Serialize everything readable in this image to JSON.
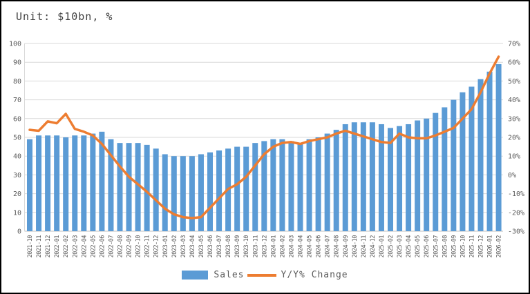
{
  "header": {
    "title": "Unit: $10bn, %"
  },
  "legend": {
    "sales_label": "Sales",
    "yoy_label": "Y/Y% Change"
  },
  "colors": {
    "bar": "#5B9BD5",
    "line": "#ED7D31",
    "gridline": "#D9D9D9",
    "axis_line": "#BFBFBF",
    "axis_text": "#595959",
    "title_text": "#3F3F3F",
    "background": "#FFFFFF",
    "frame": "#000000"
  },
  "chart_data": {
    "type": "bar",
    "subtype": "bar+line-combo",
    "title": "Unit: $10bn, %",
    "grid": true,
    "legend_position": "bottom",
    "categories": [
      "2021-10",
      "2021-11",
      "2021-12",
      "2022-01",
      "2022-02",
      "2022-03",
      "2022-04",
      "2022-05",
      "2022-06",
      "2022-07",
      "2022-08",
      "2022-09",
      "2022-10",
      "2022-11",
      "2022-12",
      "2023-01",
      "2023-02",
      "2023-03",
      "2023-04",
      "2023-05",
      "2023-06",
      "2023-07",
      "2023-08",
      "2023-09",
      "2023-10",
      "2023-11",
      "2023-12",
      "2024-01",
      "2024-02",
      "2024-03",
      "2024-04",
      "2024-05",
      "2024-06",
      "2024-07",
      "2024-08",
      "2024-09",
      "2024-10",
      "2024-11",
      "2024-12",
      "2025-01",
      "2025-02",
      "2025-03",
      "2025-04",
      "2025-05",
      "2025-06",
      "2025-07",
      "2025-08",
      "2025-09",
      "2025-10",
      "2025-11",
      "2025-12",
      "2026-01",
      "2026-02"
    ],
    "series": [
      {
        "name": "Sales",
        "type": "bar",
        "axis": "left",
        "color": "#5B9BD5",
        "values": [
          49,
          51,
          51,
          51,
          50,
          51,
          51,
          52,
          53,
          49,
          47,
          47,
          47,
          46,
          44,
          41,
          40,
          40,
          40,
          41,
          42,
          43,
          44,
          45,
          45,
          47,
          48,
          49,
          49,
          48,
          47,
          49,
          50,
          52,
          54,
          57,
          58,
          58,
          58,
          57,
          55,
          56,
          57,
          59,
          60,
          63,
          66,
          70,
          74,
          77,
          81,
          85,
          89
        ]
      },
      {
        "name": "Y/Y% Change",
        "type": "line",
        "axis": "right",
        "color": "#ED7D31",
        "values": [
          24,
          23.5,
          28.5,
          27.5,
          32.5,
          24.5,
          23,
          21,
          16.5,
          10.5,
          4.5,
          -1,
          -5,
          -9,
          -13.5,
          -18,
          -21,
          -22.5,
          -23,
          -22.5,
          -17.5,
          -12.5,
          -7.5,
          -5,
          -1,
          5,
          11,
          15,
          17,
          17.5,
          16.5,
          18,
          19,
          20,
          22,
          23.5,
          22,
          20.5,
          19,
          17.5,
          17,
          22,
          20,
          19.5,
          19.5,
          21,
          23,
          25,
          30,
          35,
          44,
          54,
          63
        ]
      }
    ],
    "left_axis": {
      "min": 0,
      "max": 100,
      "step": 10,
      "tick_labels": [
        "0",
        "10",
        "20",
        "30",
        "40",
        "50",
        "60",
        "70",
        "80",
        "90",
        "100"
      ]
    },
    "right_axis": {
      "min": -30,
      "max": 70,
      "step": 10,
      "tick_labels": [
        "-30%",
        "-20%",
        "-10%",
        "0%",
        "10%",
        "20%",
        "30%",
        "40%",
        "50%",
        "60%",
        "70%"
      ]
    }
  }
}
